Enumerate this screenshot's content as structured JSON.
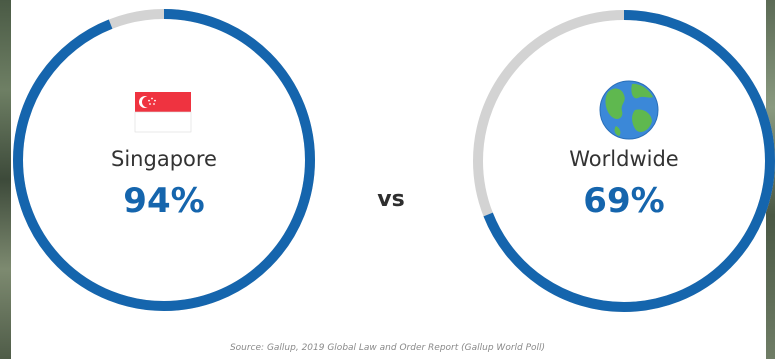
{
  "colors": {
    "accent": "#1565ad",
    "track": "#d3d3d3",
    "flag_red": "#ef3340",
    "vs": "#2e2e2e"
  },
  "comparison": {
    "left": {
      "label": "Singapore",
      "value_text": "94%",
      "icon": "singapore-flag-icon"
    },
    "vs_text": "vs",
    "right": {
      "label": "Worldwide",
      "value_text": "69%",
      "icon": "globe-icon"
    }
  },
  "chart_data": {
    "type": "pie",
    "series": [
      {
        "name": "Singapore",
        "value": 94
      },
      {
        "name": "Worldwide",
        "value": 69
      }
    ],
    "ylim": [
      0,
      100
    ]
  },
  "source": "Source: Gallup, 2019 Global Law and Order Report (Gallup World Poll)"
}
